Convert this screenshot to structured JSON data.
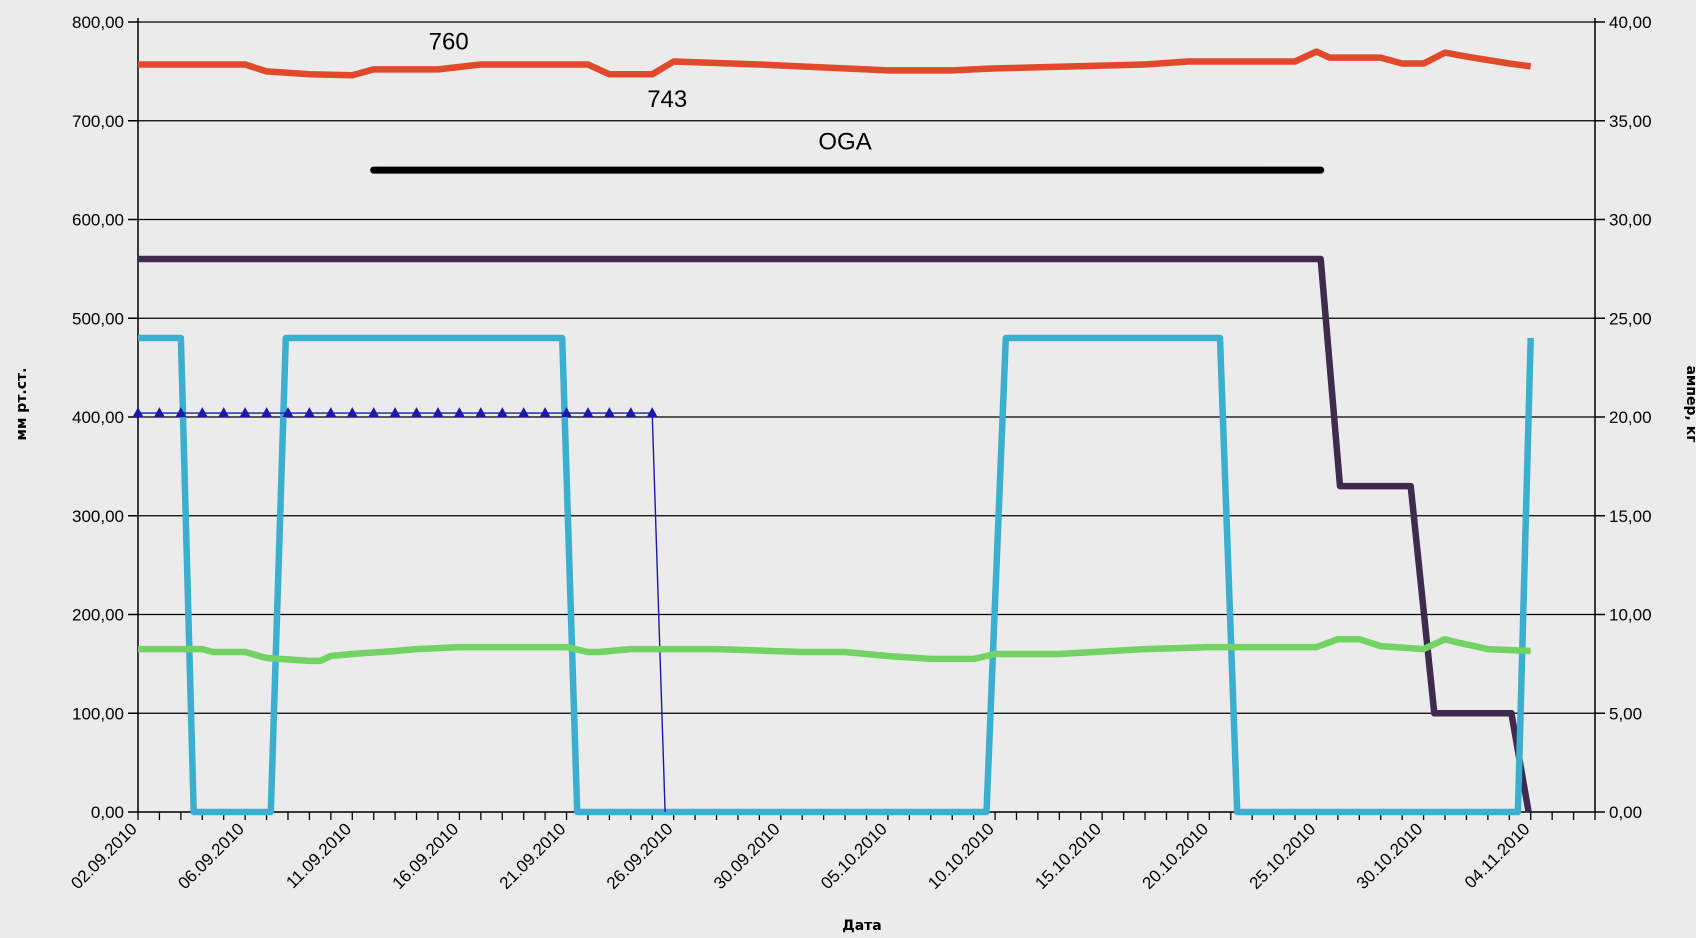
{
  "chart_data": {
    "type": "line",
    "title": "",
    "xlabel": "Дата",
    "ylabel_left": "мм рт.ст.",
    "ylabel_right": "ампер, кг",
    "x_tick_labels": [
      "02.09.2010",
      "06.09.2010",
      "11.09.2010",
      "16.09.2010",
      "21.09.2010",
      "26.09.2010",
      "30.09.2010",
      "05.10.2010",
      "10.10.2010",
      "15.10.2010",
      "20.10.2010",
      "25.10.2010",
      "30.10.2010",
      "04.11.2010"
    ],
    "y_left_ticks": [
      "0,00",
      "100,00",
      "200,00",
      "300,00",
      "400,00",
      "500,00",
      "600,00",
      "700,00",
      "800,00"
    ],
    "y_right_ticks": [
      "0,00",
      "5,00",
      "10,00",
      "15,00",
      "20,00",
      "25,00",
      "30,00",
      "35,00",
      "40,00"
    ],
    "ylim_left": [
      0,
      800
    ],
    "ylim_right": [
      0,
      40
    ],
    "xlim": [
      0,
      68
    ],
    "grid": true,
    "legend": "none",
    "annotations": [
      {
        "text": "760",
        "x": 14.5,
        "y": 772
      },
      {
        "text": "743",
        "x": 24.7,
        "y": 714
      },
      {
        "text": "OGA",
        "x": 33,
        "y": 671
      }
    ],
    "series": [
      {
        "color": "#e04a2a",
        "x": [
          0,
          5,
          6,
          8,
          10,
          11,
          14,
          16,
          18,
          21,
          22,
          24,
          25,
          29,
          35,
          36,
          38,
          40,
          47,
          49,
          54,
          55,
          55.6,
          58,
          59,
          60,
          61,
          62,
          64,
          65
        ],
        "y": [
          757,
          757,
          750,
          747,
          746,
          752,
          752,
          757,
          757,
          757,
          747,
          747,
          760,
          757,
          751,
          751,
          751,
          753,
          757,
          760,
          760,
          770,
          764,
          764,
          758,
          758,
          769,
          765,
          758,
          755
        ]
      },
      {
        "color": "#000000",
        "x": [
          11,
          55.2
        ],
        "y": [
          650,
          650
        ]
      },
      {
        "color": "#3e2b4d",
        "x": [
          0,
          55.2,
          56.1,
          59.4,
          60.5,
          64.1,
          64.9
        ],
        "y": [
          560,
          560,
          330,
          330,
          100,
          100,
          0
        ]
      },
      {
        "color": "#3aafcf",
        "x": [
          0,
          2,
          2.6,
          6.2,
          6.9,
          19.8,
          20.5,
          39.6,
          40.5,
          50.5,
          51.3,
          64.4,
          65
        ],
        "y": [
          480,
          480,
          0,
          0,
          480,
          480,
          0,
          0,
          480,
          480,
          0,
          0,
          480
        ]
      },
      {
        "color": "#1a1aa8",
        "marker": "triangle",
        "x": [
          0,
          1,
          2,
          3,
          4,
          5,
          6,
          7,
          8,
          9,
          10,
          11,
          12,
          13,
          14,
          15,
          16,
          17,
          18,
          19,
          20,
          21,
          22,
          23,
          24,
          24.6
        ],
        "y": [
          404,
          404,
          404,
          404,
          404,
          404,
          404,
          404,
          404,
          404,
          404,
          404,
          404,
          404,
          404,
          404,
          404,
          404,
          404,
          404,
          404,
          404,
          404,
          404,
          404,
          0
        ]
      },
      {
        "color": "#72d264",
        "x": [
          0,
          3,
          3.5,
          5,
          6,
          8,
          8.5,
          9,
          10,
          12,
          13,
          15,
          18,
          20,
          21,
          21.5,
          23,
          27,
          31,
          33,
          35,
          37,
          39,
          40,
          43,
          47,
          50,
          55,
          56,
          57,
          58,
          60,
          61,
          61.5,
          63,
          65
        ],
        "y": [
          165,
          165,
          162,
          162,
          156,
          153,
          153,
          158,
          160,
          163,
          165,
          167,
          167,
          167,
          162,
          162,
          165,
          165,
          162,
          162,
          158,
          155,
          155,
          160,
          160,
          165,
          167,
          167,
          175,
          175,
          168,
          165,
          175,
          172,
          165,
          163
        ]
      }
    ]
  }
}
